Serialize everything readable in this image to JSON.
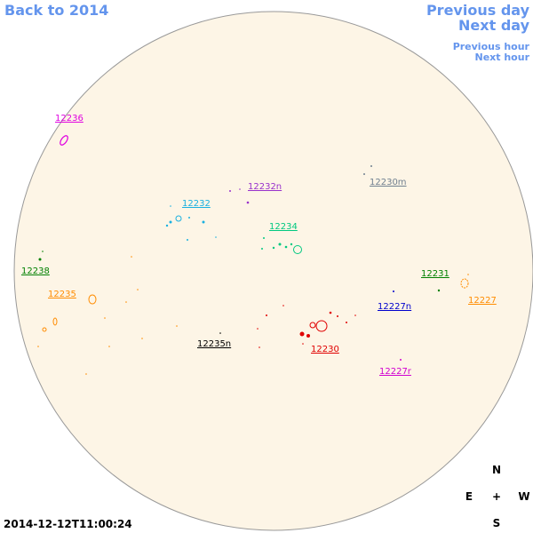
{
  "nav": {
    "back": "Back to 2014",
    "previous_day": "Previous day",
    "next_day": "Next day",
    "previous_hour": "Previous hour",
    "next_hour": "Next hour"
  },
  "regions": [
    "12236",
    "12232n",
    "12230m",
    "12232",
    "12234",
    "12238",
    "12231",
    "12235",
    "12227",
    "12227n",
    "12235n",
    "12230",
    "12227r"
  ],
  "compass": {
    "north": "N",
    "east": "E",
    "center": "+",
    "west": "W",
    "south": "S"
  },
  "timestamp": "2014-12-12T11:00:24"
}
